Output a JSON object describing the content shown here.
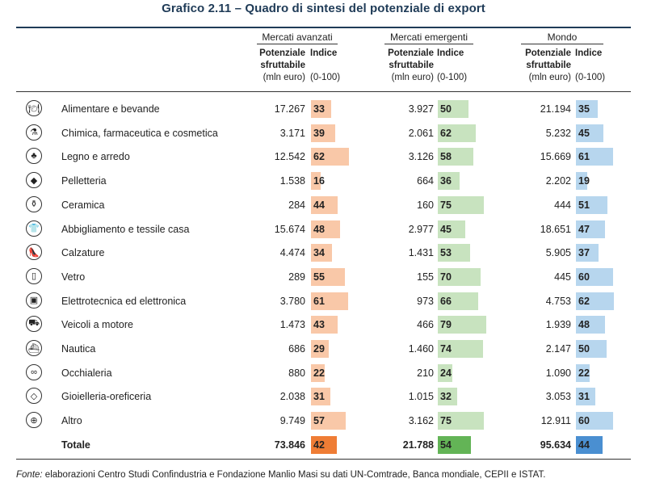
{
  "title": "Grafico 2.11 – Quadro di sintesi del potenziale di export",
  "source_prefix": "Fonte:",
  "source_text": " elaborazioni Centro Studi Confindustria e Fondazione Manlio Masi su dati UN-Comtrade, Banca mondiale, CEPII e ISTAT.",
  "headers": {
    "potential_line1": "Potenziale",
    "potential_line2": "sfruttabile",
    "potential_unit": "(mln euro)",
    "index_label": "Indice",
    "index_unit": "(0-100)"
  },
  "colors": {
    "advanced_bar": "#f9c8a8",
    "advanced_total": "#ef7d35",
    "emerging_bar": "#c8e3bf",
    "emerging_total": "#63b456",
    "world_bar": "#b7d6ee",
    "world_total": "#4a8fd1"
  },
  "chart_data": {
    "type": "table",
    "title": "Grafico 2.11 – Quadro di sintesi del potenziale di export",
    "groups": [
      "Mercati avanzati",
      "Mercati emergenti",
      "Mondo"
    ],
    "index_range": [
      0,
      100
    ],
    "rows": [
      {
        "sector": "Alimentare e bevande",
        "icon": "dining-plate-icon",
        "adv_pot": "17.267",
        "adv_idx": 33,
        "em_pot": "3.927",
        "em_idx": 50,
        "world_pot": "21.194",
        "world_idx": 35
      },
      {
        "sector": "Chimica, farmaceutica e cosmetica",
        "icon": "flask-icon",
        "adv_pot": "3.171",
        "adv_idx": 39,
        "em_pot": "2.061",
        "em_idx": 62,
        "world_pot": "5.232",
        "world_idx": 45
      },
      {
        "sector": "Legno e arredo",
        "icon": "tree-icon",
        "adv_pot": "12.542",
        "adv_idx": 62,
        "em_pot": "3.126",
        "em_idx": 58,
        "world_pot": "15.669",
        "world_idx": 61
      },
      {
        "sector": "Pelletteria",
        "icon": "leather-tag-icon",
        "adv_pot": "1.538",
        "adv_idx": 16,
        "em_pot": "664",
        "em_idx": 36,
        "world_pot": "2.202",
        "world_idx": 19
      },
      {
        "sector": "Ceramica",
        "icon": "vase-icon",
        "adv_pot": "284",
        "adv_idx": 44,
        "em_pot": "160",
        "em_idx": 75,
        "world_pot": "444",
        "world_idx": 51
      },
      {
        "sector": "Abbigliamento e tessile casa",
        "icon": "shirt-icon",
        "adv_pot": "15.674",
        "adv_idx": 48,
        "em_pot": "2.977",
        "em_idx": 45,
        "world_pot": "18.651",
        "world_idx": 47
      },
      {
        "sector": "Calzature",
        "icon": "shoe-icon",
        "adv_pot": "4.474",
        "adv_idx": 34,
        "em_pot": "1.431",
        "em_idx": 53,
        "world_pot": "5.905",
        "world_idx": 37
      },
      {
        "sector": "Vetro",
        "icon": "glass-icon",
        "adv_pot": "289",
        "adv_idx": 55,
        "em_pot": "155",
        "em_idx": 70,
        "world_pot": "445",
        "world_idx": 60
      },
      {
        "sector": "Elettrotecnica ed elettronica",
        "icon": "chip-icon",
        "adv_pot": "3.780",
        "adv_idx": 61,
        "em_pot": "973",
        "em_idx": 66,
        "world_pot": "4.753",
        "world_idx": 62
      },
      {
        "sector": "Veicoli a motore",
        "icon": "car-icon",
        "adv_pot": "1.473",
        "adv_idx": 43,
        "em_pot": "466",
        "em_idx": 79,
        "world_pot": "1.939",
        "world_idx": 48
      },
      {
        "sector": "Nautica",
        "icon": "ship-icon",
        "adv_pot": "686",
        "adv_idx": 29,
        "em_pot": "1.460",
        "em_idx": 74,
        "world_pot": "2.147",
        "world_idx": 50
      },
      {
        "sector": "Occhialeria",
        "icon": "glasses-icon",
        "adv_pot": "880",
        "adv_idx": 22,
        "em_pot": "210",
        "em_idx": 24,
        "world_pot": "1.090",
        "world_idx": 22
      },
      {
        "sector": "Gioielleria-oreficeria",
        "icon": "diamond-icon",
        "adv_pot": "2.038",
        "adv_idx": 31,
        "em_pot": "1.015",
        "em_idx": 32,
        "world_pot": "3.053",
        "world_idx": 31
      },
      {
        "sector": "Altro",
        "icon": "globe-icon",
        "adv_pot": "9.749",
        "adv_idx": 57,
        "em_pot": "3.162",
        "em_idx": 75,
        "world_pot": "12.911",
        "world_idx": 60
      }
    ],
    "total": {
      "sector": "Totale",
      "adv_pot": "73.846",
      "adv_idx": 42,
      "em_pot": "21.788",
      "em_idx": 54,
      "world_pot": "95.634",
      "world_idx": 44
    }
  }
}
